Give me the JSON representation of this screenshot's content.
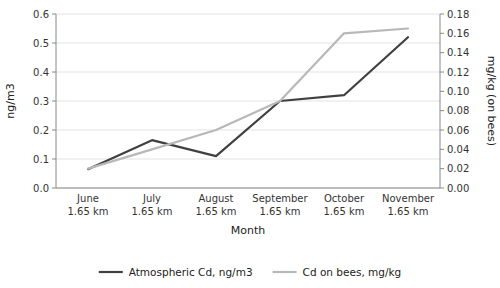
{
  "chart_data": {
    "type": "line",
    "categories": [
      "June\n1.65 km",
      "July\n1.65 km",
      "August\n1.65 km",
      "September\n1.65 km",
      "October\n1.65 km",
      "November\n1.65 km"
    ],
    "xlabel": "Month",
    "ylabel": "ng/m3",
    "y2label": "mg/kg (on bees)",
    "series": [
      {
        "name": "Atmospheric Cd, ng/m3",
        "color": "#404040",
        "values": [
          0.065,
          0.165,
          0.11,
          0.3,
          0.32,
          0.52
        ]
      },
      {
        "name": "Cd on bees, mg/kg",
        "color": "#b8b8b8",
        "axis": "y2",
        "values": [
          0.02,
          0.04,
          0.06,
          0.09,
          0.16,
          0.165
        ]
      }
    ],
    "ylim": [
      0,
      0.6
    ],
    "yticks": [
      {
        "value": 0,
        "label": "0.0"
      },
      0.1,
      0.2,
      0.3,
      0.4,
      0.5,
      0.6
    ],
    "y2lim": [
      0,
      0.18
    ],
    "y2ticks": [
      {
        "value": 0,
        "label": "0.00"
      },
      0.02,
      0.04,
      0.06,
      0.08,
      {
        "value": 0.1,
        "label": "0.10"
      },
      0.12,
      0.14,
      0.16,
      0.18
    ],
    "grid": true,
    "legend": "bottom"
  }
}
